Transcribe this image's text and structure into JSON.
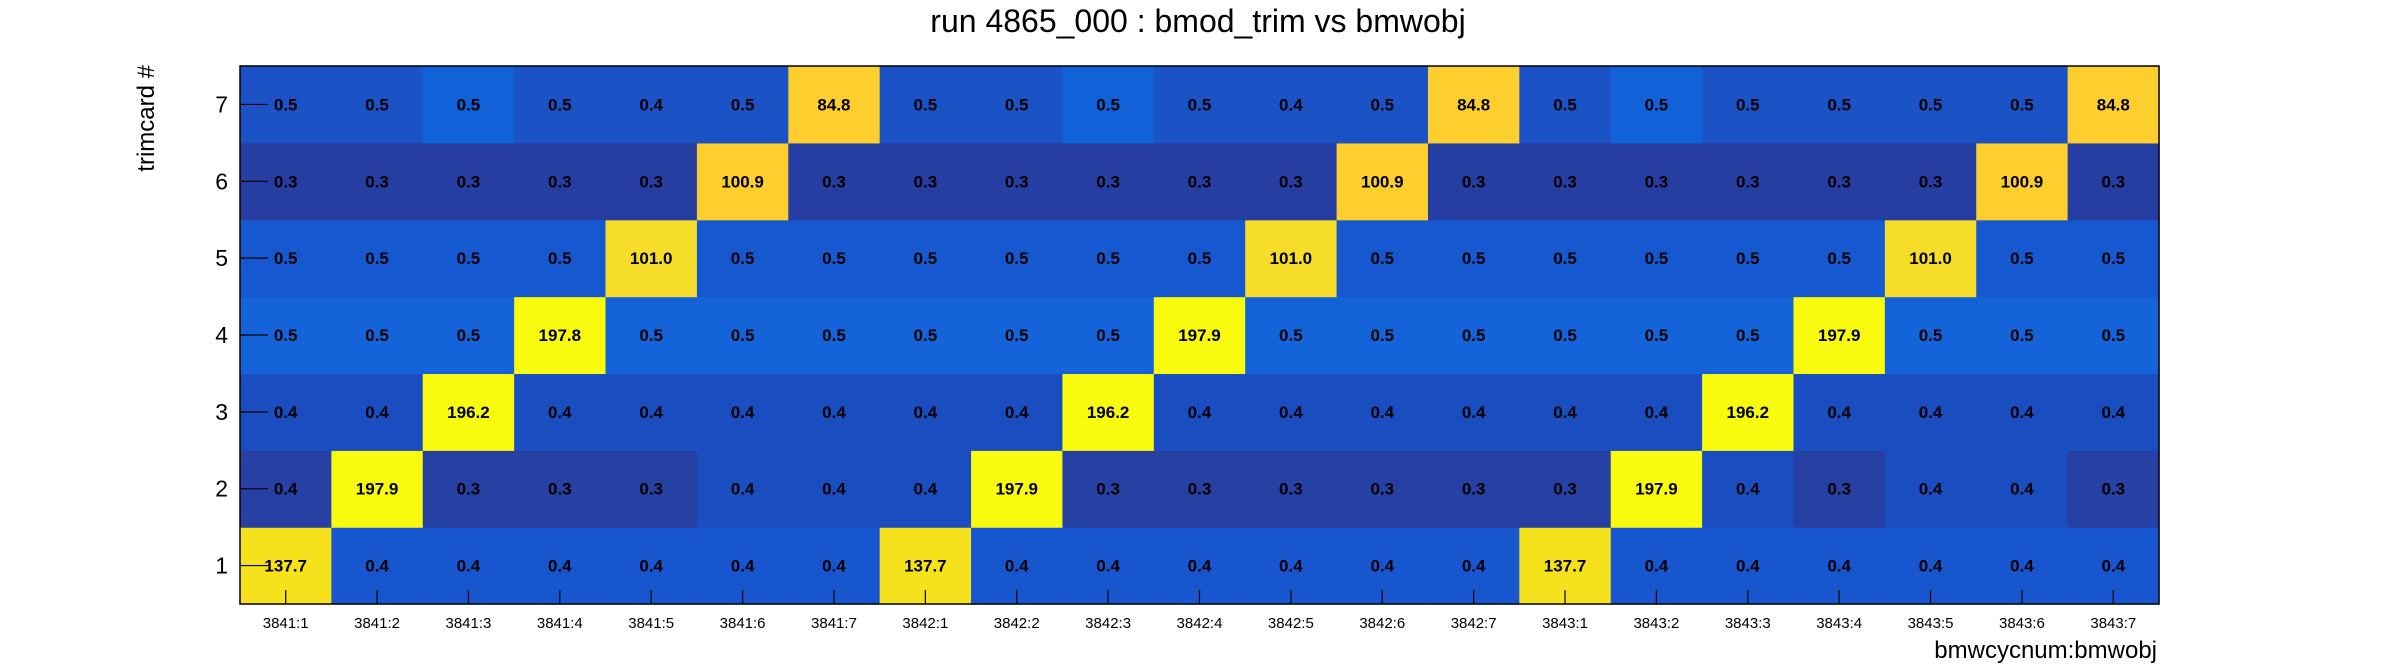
{
  "chart_data": {
    "type": "heatmap",
    "title": "run 4865_000 : bmod_trim vs bmwobj",
    "xlabel": "bmwcycnum:bmwobj",
    "ylabel": "trimcard #",
    "x_categories": [
      "3841:1",
      "3841:2",
      "3841:3",
      "3841:4",
      "3841:5",
      "3841:6",
      "3841:7",
      "3842:1",
      "3842:2",
      "3842:3",
      "3842:4",
      "3842:5",
      "3842:6",
      "3842:7",
      "3843:1",
      "3843:2",
      "3843:3",
      "3843:4",
      "3843:5",
      "3843:6",
      "3843:7"
    ],
    "y_categories": [
      "1",
      "2",
      "3",
      "4",
      "5",
      "6",
      "7"
    ],
    "z": [
      [
        "137.7",
        "0.4",
        "0.4",
        "0.4",
        "0.4",
        "0.4",
        "0.4",
        "137.7",
        "0.4",
        "0.4",
        "0.4",
        "0.4",
        "0.4",
        "0.4",
        "137.7",
        "0.4",
        "0.4",
        "0.4",
        "0.4",
        "0.4",
        "0.4"
      ],
      [
        "0.4",
        "197.9",
        "0.3",
        "0.3",
        "0.3",
        "0.4",
        "0.4",
        "0.4",
        "197.9",
        "0.3",
        "0.3",
        "0.3",
        "0.3",
        "0.3",
        "0.3",
        "197.9",
        "0.4",
        "0.3",
        "0.4",
        "0.4",
        "0.3"
      ],
      [
        "0.4",
        "0.4",
        "196.2",
        "0.4",
        "0.4",
        "0.4",
        "0.4",
        "0.4",
        "0.4",
        "196.2",
        "0.4",
        "0.4",
        "0.4",
        "0.4",
        "0.4",
        "0.4",
        "196.2",
        "0.4",
        "0.4",
        "0.4",
        "0.4"
      ],
      [
        "0.5",
        "0.5",
        "0.5",
        "197.8",
        "0.5",
        "0.5",
        "0.5",
        "0.5",
        "0.5",
        "0.5",
        "197.9",
        "0.5",
        "0.5",
        "0.5",
        "0.5",
        "0.5",
        "0.5",
        "197.9",
        "0.5",
        "0.5",
        "0.5"
      ],
      [
        "0.5",
        "0.5",
        "0.5",
        "0.5",
        "101.0",
        "0.5",
        "0.5",
        "0.5",
        "0.5",
        "0.5",
        "0.5",
        "101.0",
        "0.5",
        "0.5",
        "0.5",
        "0.5",
        "0.5",
        "0.5",
        "101.0",
        "0.5",
        "0.5"
      ],
      [
        "0.3",
        "0.3",
        "0.3",
        "0.3",
        "0.3",
        "100.9",
        "0.3",
        "0.3",
        "0.3",
        "0.3",
        "0.3",
        "0.3",
        "100.9",
        "0.3",
        "0.3",
        "0.3",
        "0.3",
        "0.3",
        "0.3",
        "100.9",
        "0.3"
      ],
      [
        "0.5",
        "0.5",
        "0.5",
        "0.5",
        "0.4",
        "0.5",
        "84.8",
        "0.5",
        "0.5",
        "0.5",
        "0.5",
        "0.4",
        "0.5",
        "84.8",
        "0.5",
        "0.5",
        "0.5",
        "0.5",
        "0.5",
        "0.5",
        "84.8"
      ]
    ],
    "cell_colors": [
      [
        "#f6e21c",
        "#1856cf",
        "#1856cf",
        "#1856cf",
        "#1856cf",
        "#1856cf",
        "#1856cf",
        "#f6e21c",
        "#1856cf",
        "#1856cf",
        "#1856cf",
        "#1856cf",
        "#1856cf",
        "#1856cf",
        "#f6e21c",
        "#1856cf",
        "#1856cf",
        "#1856cf",
        "#1856cf",
        "#1856cf",
        "#1856cf"
      ],
      [
        "#2640a3",
        "#f9fb0e",
        "#2640a3",
        "#2640a3",
        "#2640a3",
        "#1a4ec0",
        "#1a4ec0",
        "#1a4ec0",
        "#f9fb0e",
        "#2640a3",
        "#2640a3",
        "#2640a3",
        "#2640a3",
        "#2640a3",
        "#2640a3",
        "#f9fb0e",
        "#1a4ec0",
        "#2640a3",
        "#1a4ec0",
        "#1a4ec0",
        "#2640a3"
      ],
      [
        "#1a4ec0",
        "#1a4ec0",
        "#f9fb0e",
        "#1a4ec0",
        "#1a4ec0",
        "#1a4ec0",
        "#1a4ec0",
        "#1a4ec0",
        "#1a4ec0",
        "#f9fb0e",
        "#1a4ec0",
        "#1a4ec0",
        "#1a4ec0",
        "#1a4ec0",
        "#1a4ec0",
        "#1a4ec0",
        "#f9fb0e",
        "#1a4ec0",
        "#1a4ec0",
        "#1a4ec0",
        "#1a4ec0"
      ],
      [
        "#1463d8",
        "#1463d8",
        "#1463d8",
        "#f9fb0e",
        "#1463d8",
        "#1463d8",
        "#1463d8",
        "#1463d8",
        "#1463d8",
        "#1463d8",
        "#f9fb0e",
        "#1463d8",
        "#1463d8",
        "#1463d8",
        "#1463d8",
        "#1463d8",
        "#1463d8",
        "#f9fb0e",
        "#1463d8",
        "#1463d8",
        "#1463d8"
      ],
      [
        "#1658d0",
        "#1658d0",
        "#1658d0",
        "#1658d0",
        "#f6dd2a",
        "#1658d0",
        "#1658d0",
        "#1658d0",
        "#1658d0",
        "#1658d0",
        "#1658d0",
        "#f6dd2a",
        "#1658d0",
        "#1658d0",
        "#1658d0",
        "#1658d0",
        "#1658d0",
        "#1658d0",
        "#f6dd2a",
        "#1658d0",
        "#1658d0"
      ],
      [
        "#263ea2",
        "#263ea2",
        "#263ea2",
        "#263ea2",
        "#263ea2",
        "#fcce2e",
        "#263ea2",
        "#263ea2",
        "#263ea2",
        "#263ea2",
        "#263ea2",
        "#263ea2",
        "#fcce2e",
        "#263ea2",
        "#263ea2",
        "#263ea2",
        "#263ea2",
        "#263ea2",
        "#263ea2",
        "#fcce2e",
        "#263ea2"
      ],
      [
        "#1b52c6",
        "#1b52c6",
        "#1161d8",
        "#1b52c6",
        "#1b52c6",
        "#1b52c6",
        "#fcce2e",
        "#1b52c6",
        "#1b52c6",
        "#1161d8",
        "#1b52c6",
        "#1b52c6",
        "#1b52c6",
        "#fcce2e",
        "#1b52c6",
        "#1161d8",
        "#1b52c6",
        "#1b52c6",
        "#1b52c6",
        "#1b52c6",
        "#fcce2e"
      ]
    ]
  }
}
